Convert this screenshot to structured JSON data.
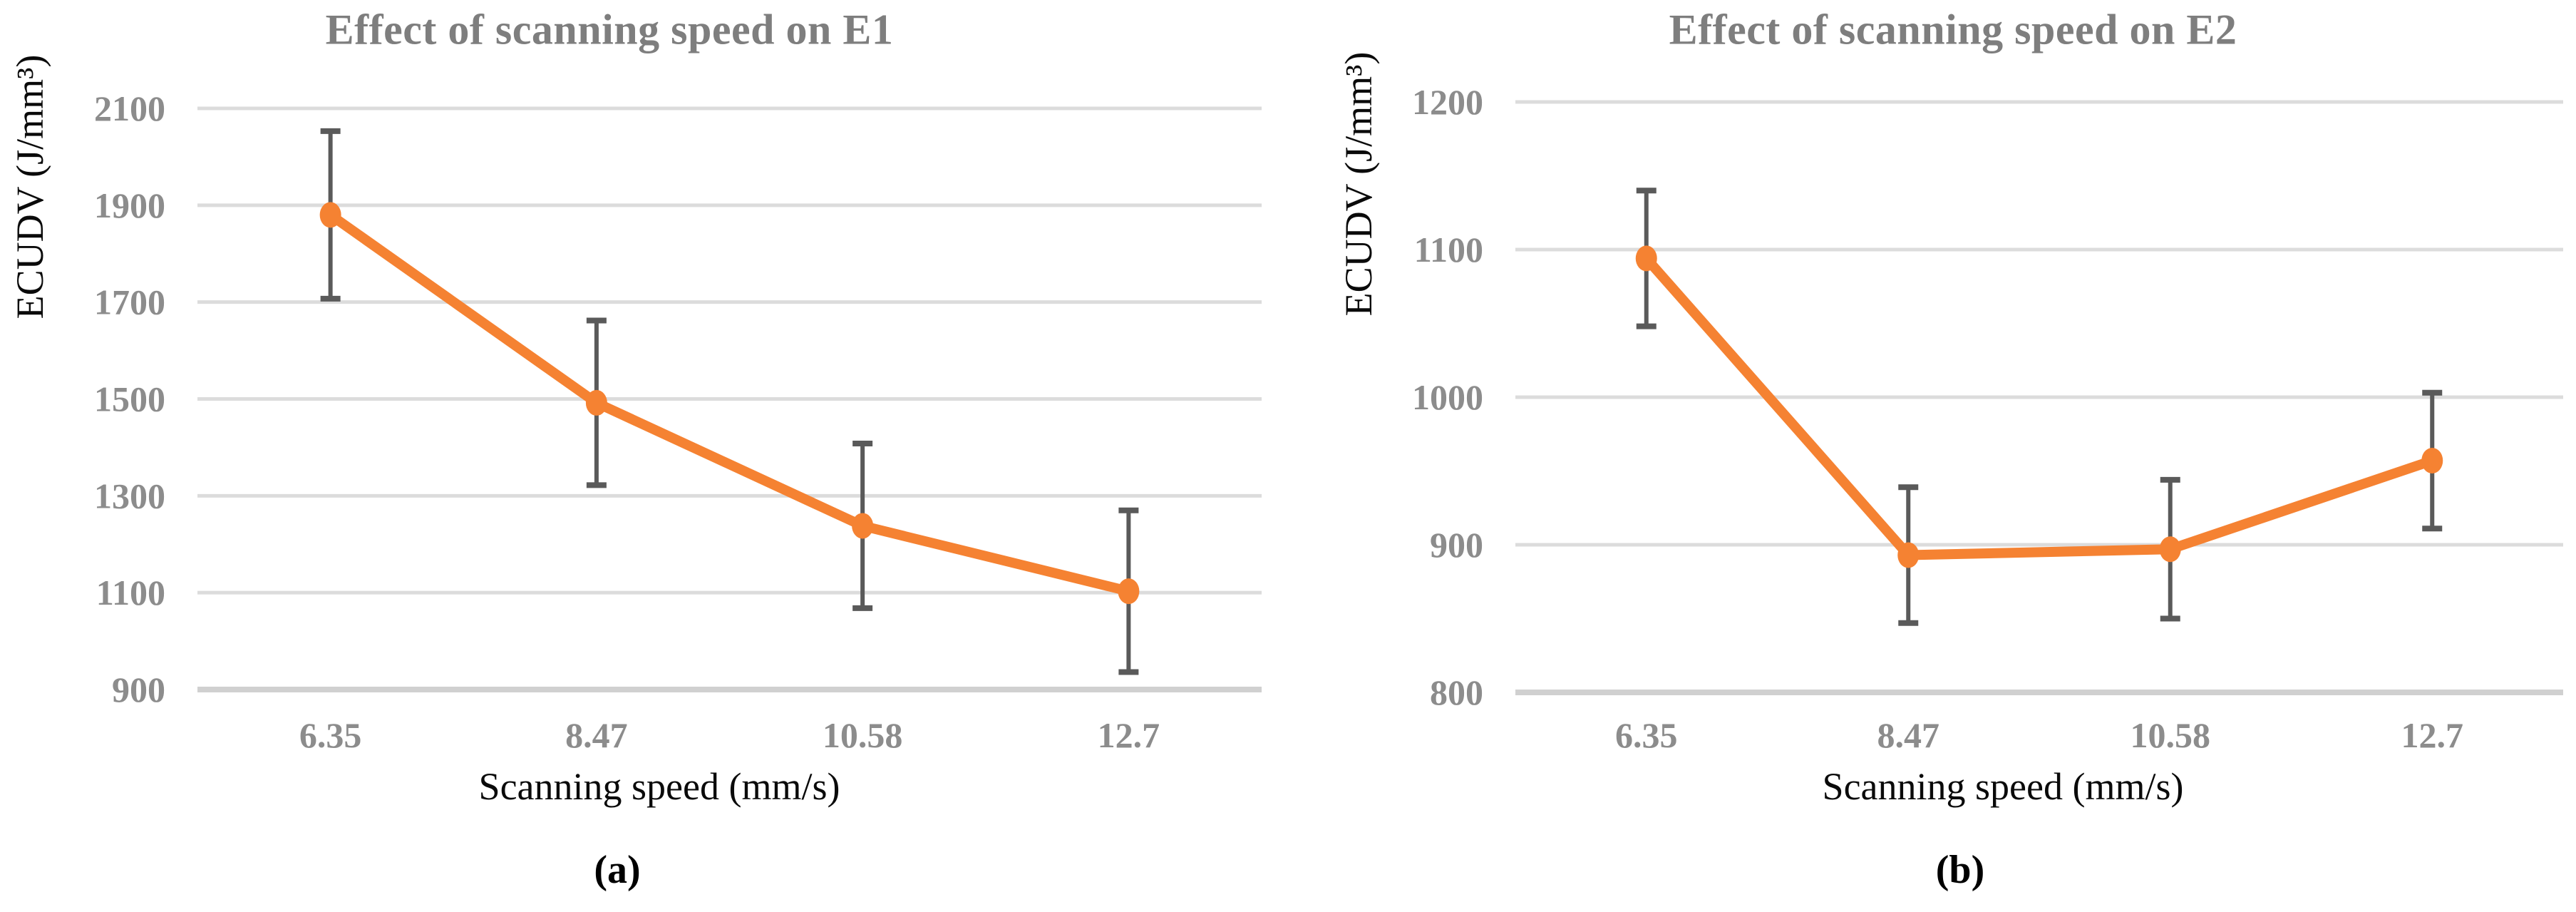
{
  "figure": {
    "background": "#ffffff",
    "description": "Two-panel line chart figure showing effect of scanning speed on energy consumption per unit deposited volume (ECUDV) for experiments E1 and E2"
  },
  "colors": {
    "series": "#F58232",
    "error_bar": "#5A5A5A",
    "gridline": "#DCDCDC",
    "axis_line": "#D0D0D0",
    "tick_label": "#8C8C8C",
    "title": "#7E7E7E",
    "axis_title": "#0A0A0A",
    "caption": "#000000"
  },
  "chart_data": [
    {
      "type": "line",
      "title": "Effect of scanning speed on E1",
      "ylabel": "ECUDV (J/mm³)",
      "xlabel": "Scanning speed (mm/s)",
      "caption": "(a)",
      "categories": [
        "6.35",
        "8.47",
        "10.58",
        "12.7"
      ],
      "series": [
        {
          "name": "ECUDV E1",
          "values": [
            1880,
            1492,
            1238,
            1103
          ],
          "error_plus": [
            173,
            170,
            170,
            167
          ],
          "error_minus": [
            173,
            170,
            170,
            167
          ]
        }
      ],
      "ylim": [
        900,
        2100
      ],
      "yticks": [
        2100,
        1900,
        1700,
        1500,
        1300,
        1100,
        900
      ],
      "grid": "horizontal",
      "legend": "none",
      "marker": "circle"
    },
    {
      "type": "line",
      "title": "Effect of scanning speed on E2",
      "ylabel": "ECUDV (J/mm³)",
      "xlabel": "Scanning speed (mm/s)",
      "caption": "(b)",
      "categories": [
        "6.35",
        "8.47",
        "10.58",
        "12.7"
      ],
      "series": [
        {
          "name": "ECUDV E2",
          "values": [
            1094,
            893,
            897,
            957
          ],
          "error_plus": [
            46,
            46,
            47,
            46
          ],
          "error_minus": [
            46,
            46,
            47,
            46
          ]
        }
      ],
      "ylim": [
        800,
        1200
      ],
      "yticks": [
        1200,
        1100,
        1000,
        900,
        800
      ],
      "grid": "horizontal",
      "legend": "none",
      "marker": "circle"
    }
  ]
}
